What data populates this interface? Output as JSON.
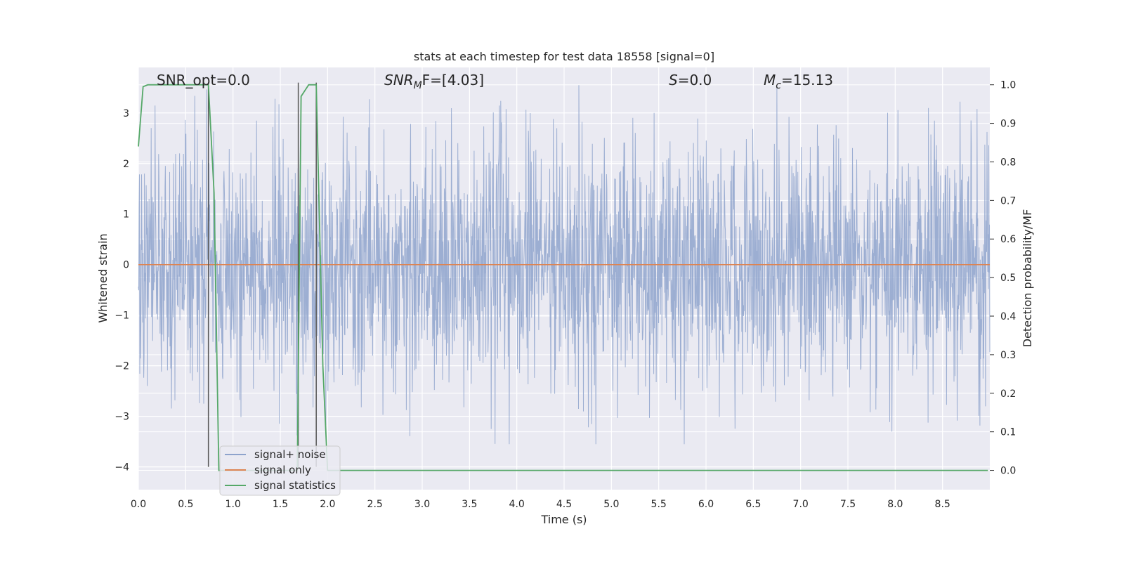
{
  "chart_data": {
    "type": "line",
    "title": "stats at each timestep for test data 18558 [signal=0]",
    "xlabel": "Time (s)",
    "ylabel": "Whitened strain",
    "y2label": "Detection probability/MF",
    "xlim": [
      0,
      9.0
    ],
    "ylim": [
      -4.45,
      3.9
    ],
    "y2lim": [
      -0.05,
      1.045
    ],
    "x_ticks": [
      0.0,
      0.5,
      1.0,
      1.5,
      2.0,
      2.5,
      3.0,
      3.5,
      4.0,
      4.5,
      5.0,
      5.5,
      6.0,
      6.5,
      7.0,
      7.5,
      8.0,
      8.5
    ],
    "y_ticks": [
      3,
      2,
      1,
      0,
      -1,
      -2,
      -3,
      -4
    ],
    "y2_ticks": [
      1.0,
      0.9,
      0.8,
      0.7,
      0.6,
      0.5,
      0.4,
      0.3,
      0.2,
      0.1,
      0.0
    ],
    "grid": true,
    "legend_placement": "lower-left",
    "annotations": {
      "snr_opt": "SNR_opt=0.0",
      "snr_mf_base": "SNR",
      "snr_mf_sub": "M",
      "snr_mf_tail": "F=[4.03]",
      "s_base": "S",
      "s_tail": "=0.0",
      "mc_base": "M",
      "mc_sub": "c",
      "mc_tail": "=15.13"
    },
    "series": [
      {
        "name": "signal+ noise",
        "color": "#8ea3cc",
        "description_values": "noise envelope, roughly within ±2 with peaks near 3.5 and -3.5",
        "noise_amplitude": 1.7,
        "noise_samples": 2400
      },
      {
        "name": "signal only",
        "color": "#dd8452",
        "x": [
          0.0,
          9.0
        ],
        "y": [
          0.0,
          0.0
        ]
      },
      {
        "name": "signal statistics",
        "color": "#55a868",
        "axis": "right",
        "x": [
          0.0,
          0.05,
          0.1,
          0.2,
          0.6,
          0.74,
          0.8,
          0.85,
          1.0,
          1.6,
          1.68,
          1.72,
          1.8,
          1.84,
          1.88,
          1.95,
          2.0,
          2.1,
          5.2,
          5.3,
          8.98
        ],
        "y": [
          0.84,
          0.995,
          1.0,
          1.0,
          1.0,
          1.0,
          0.72,
          0.0,
          0.0,
          0.0,
          0.0,
          0.97,
          1.0,
          1.0,
          1.0,
          0.27,
          0.0,
          0.0,
          0.0,
          0.0,
          0.0
        ]
      }
    ],
    "vertical_markers": {
      "color": "#555555",
      "x": [
        0.74,
        1.69,
        1.88
      ],
      "y_range": [
        -4.0,
        3.6
      ]
    }
  }
}
